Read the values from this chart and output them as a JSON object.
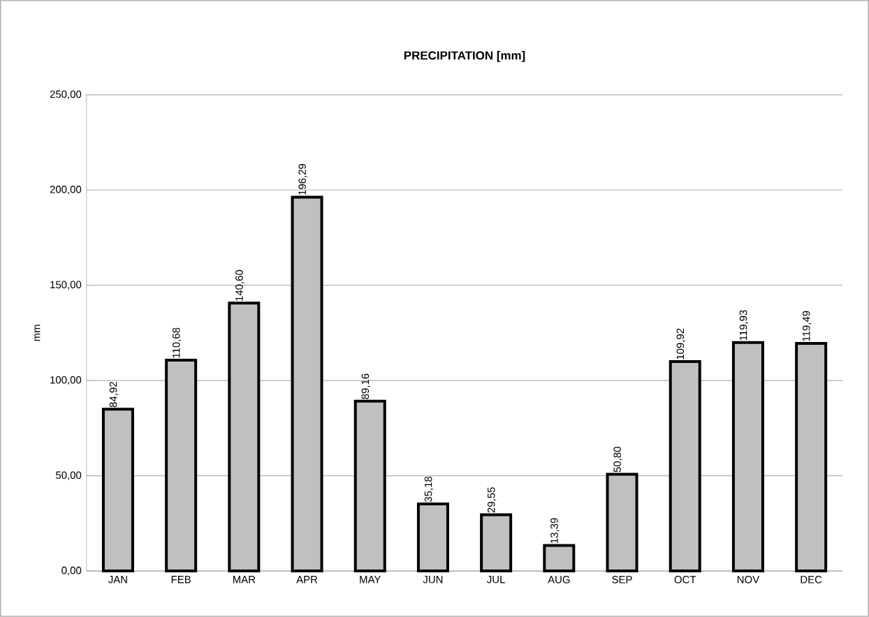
{
  "chart_data": {
    "type": "bar",
    "title": "PRECIPITATION [mm]",
    "ylabel": "mm",
    "categories": [
      "JAN",
      "FEB",
      "MAR",
      "APR",
      "MAY",
      "JUN",
      "JUL",
      "AUG",
      "SEP",
      "OCT",
      "NOV",
      "DEC"
    ],
    "values": [
      84.92,
      110.68,
      140.6,
      196.29,
      89.16,
      35.18,
      29.55,
      13.39,
      50.8,
      109.92,
      119.93,
      119.49
    ],
    "value_labels": [
      "84,92",
      "110,68",
      "140,60",
      "196,29",
      "89,16",
      "35,18",
      "29,55",
      "13,39",
      "50,80",
      "109,92",
      "119,93",
      "119,49"
    ],
    "color": "#c0c0c0",
    "ylim": [
      0,
      250
    ],
    "yticks": [
      {
        "value": 0,
        "label": "0,00"
      },
      {
        "value": 50,
        "label": "50,00"
      },
      {
        "value": 100,
        "label": "100,00"
      },
      {
        "value": 150,
        "label": "150,00"
      },
      {
        "value": 200,
        "label": "200,00"
      },
      {
        "value": 250,
        "label": "250,00"
      }
    ],
    "grid": "y"
  }
}
